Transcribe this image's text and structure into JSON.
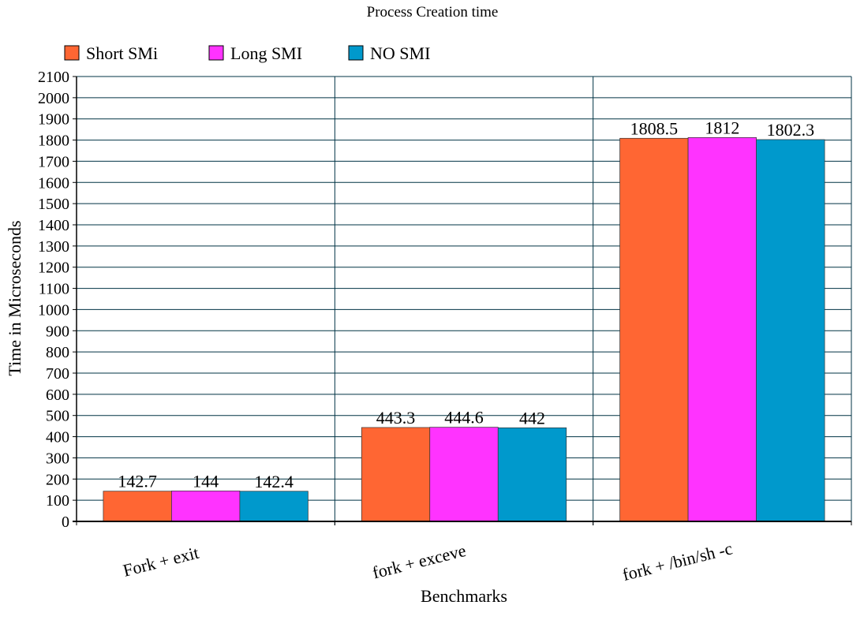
{
  "chart_data": {
    "type": "bar",
    "title": "Process Creation time",
    "xlabel": "Benchmarks",
    "ylabel": "Time in Microseconds",
    "categories": [
      "Fork + exit",
      "fork + exceve",
      "fork + /bin/sh -c"
    ],
    "series": [
      {
        "name": "Short SMi",
        "color": "#ff6633",
        "values": [
          142.7,
          443.3,
          1808.5
        ]
      },
      {
        "name": "Long SMI",
        "color": "#ff33ff",
        "values": [
          144,
          444.6,
          1812
        ]
      },
      {
        "name": "NO SMI",
        "color": "#0099cc",
        "values": [
          142.4,
          442,
          1802.3
        ]
      }
    ],
    "value_labels": [
      [
        "142.7",
        "443.3",
        "1808.5"
      ],
      [
        "144",
        "444.6",
        "1812"
      ],
      [
        "142.4",
        "442",
        "1802.3"
      ]
    ],
    "ylim": [
      0,
      2100
    ],
    "ytick_step": 100,
    "grid": true,
    "legend_position": "top-left"
  }
}
